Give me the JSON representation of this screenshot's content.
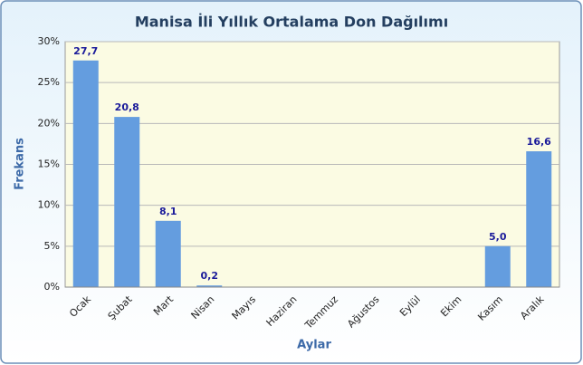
{
  "chart_data": {
    "type": "bar",
    "title": "Manisa İli Yıllık Ortalama Don Dağılımı",
    "x_label": "Aylar",
    "y_label": "Frekans",
    "categories": [
      "Ocak",
      "Şubat",
      "Mart",
      "Nisan",
      "Mayıs",
      "Haziran",
      "Temmuz",
      "Ağustos",
      "Eylül",
      "Ekim",
      "Kasım",
      "Aralık"
    ],
    "values": [
      27.7,
      20.8,
      8.1,
      0.2,
      0,
      0,
      0,
      0,
      0,
      0,
      5.0,
      16.6
    ],
    "value_labels": [
      "27,7",
      "20,8",
      "8,1",
      "0,2",
      null,
      null,
      null,
      null,
      null,
      null,
      "5,0",
      "16,6"
    ],
    "color": "#649ddf",
    "ylim": [
      0,
      30
    ],
    "yticks": [
      {
        "value": 0,
        "label": "0%"
      },
      {
        "value": 5,
        "label": "5%"
      },
      {
        "value": 10,
        "label": "10%"
      },
      {
        "value": 15,
        "label": "15%"
      },
      {
        "value": 20,
        "label": "20%"
      },
      {
        "value": 25,
        "label": "25%"
      },
      {
        "value": 30,
        "label": "30%"
      }
    ],
    "grid": true
  }
}
